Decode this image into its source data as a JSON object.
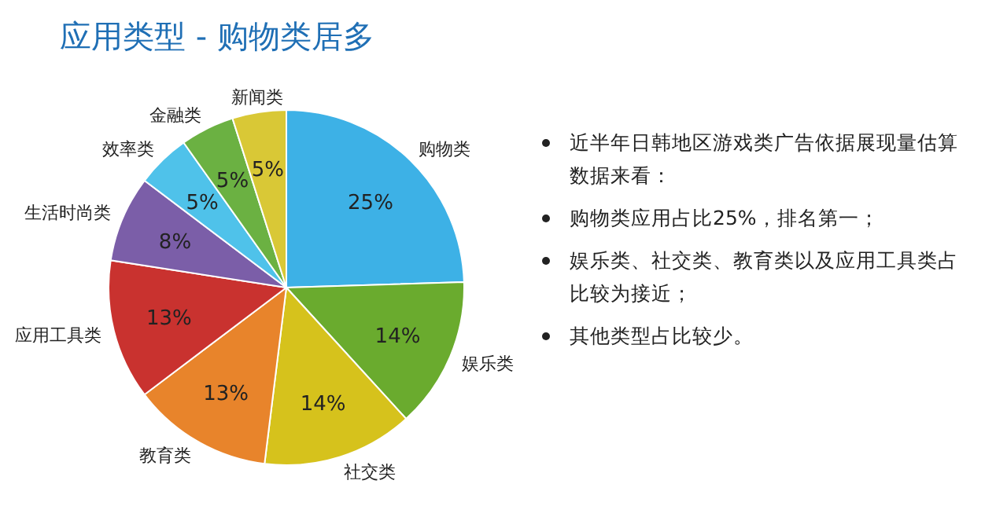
{
  "chart_data": {
    "type": "pie",
    "title": "应用类型 - 购物类居多",
    "categories": [
      "购物类",
      "娱乐类",
      "社交类",
      "教育类",
      "应用工具类",
      "生活时尚类",
      "效率类",
      "金融类",
      "新闻类"
    ],
    "values": [
      25,
      14,
      14,
      13,
      13,
      8,
      5,
      5,
      5
    ],
    "colors": [
      "#3db1e6",
      "#6aab2e",
      "#d6c21c",
      "#e8842b",
      "#c9322f",
      "#7b5ea8",
      "#4fc2ea",
      "#6bb142",
      "#d9c836"
    ],
    "value_labels": [
      "25%",
      "14%",
      "14%",
      "13%",
      "13%",
      "8%",
      "5%",
      "5%",
      "5%"
    ],
    "annotations": [
      "近半年日韩地区游戏类广告依据展现量估算数据来看：",
      "购物类应用占比25%，排名第一；",
      "娱乐类、社交类、教育类以及应用工具类占比较为接近；",
      "其他类型占比较少。"
    ]
  }
}
